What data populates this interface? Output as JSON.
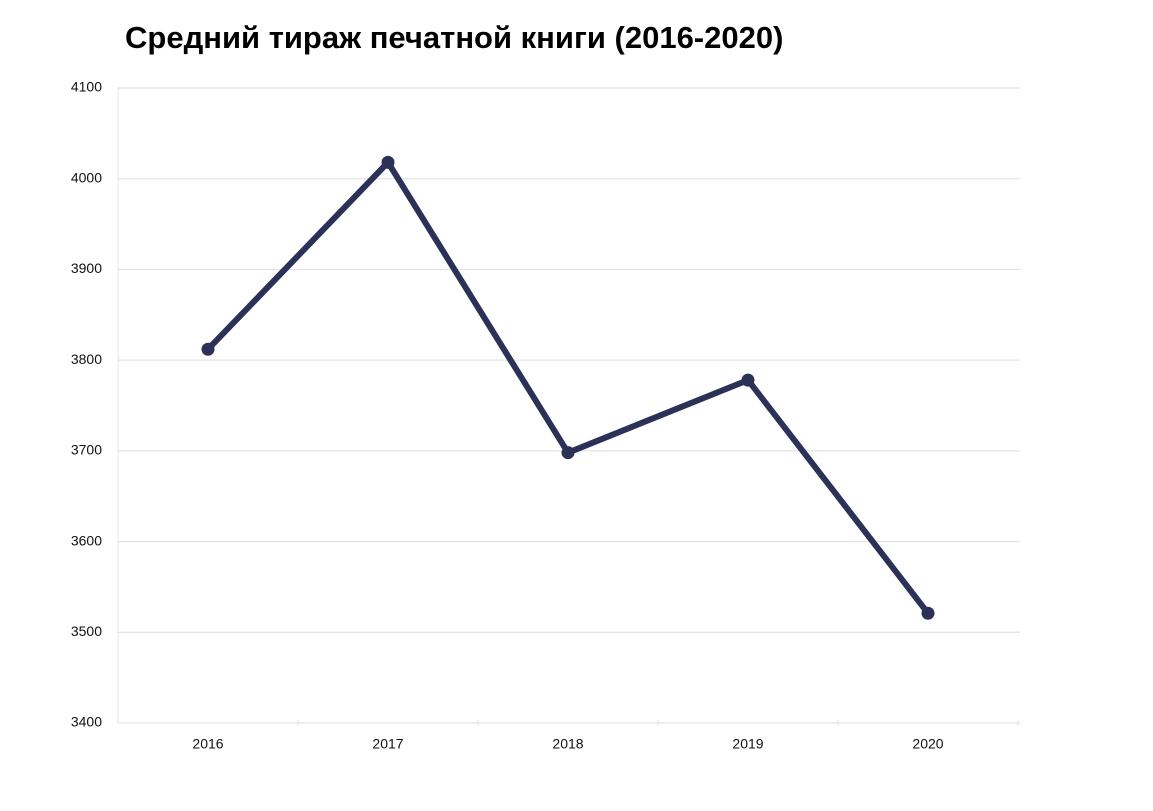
{
  "chart_data": {
    "type": "line",
    "title": "Средний тираж печатной книги (2016-2020)",
    "categories": [
      "2016",
      "2017",
      "2018",
      "2019",
      "2020"
    ],
    "series": [
      {
        "name": "Средний тираж",
        "color": "#2b3157",
        "values": [
          3812,
          4018,
          3698,
          3778,
          3521
        ]
      }
    ],
    "ylim": [
      3400,
      4100
    ],
    "yticks": [
      3400,
      3500,
      3600,
      3700,
      3800,
      3900,
      4000,
      4100
    ],
    "grid": true,
    "legend": false
  }
}
